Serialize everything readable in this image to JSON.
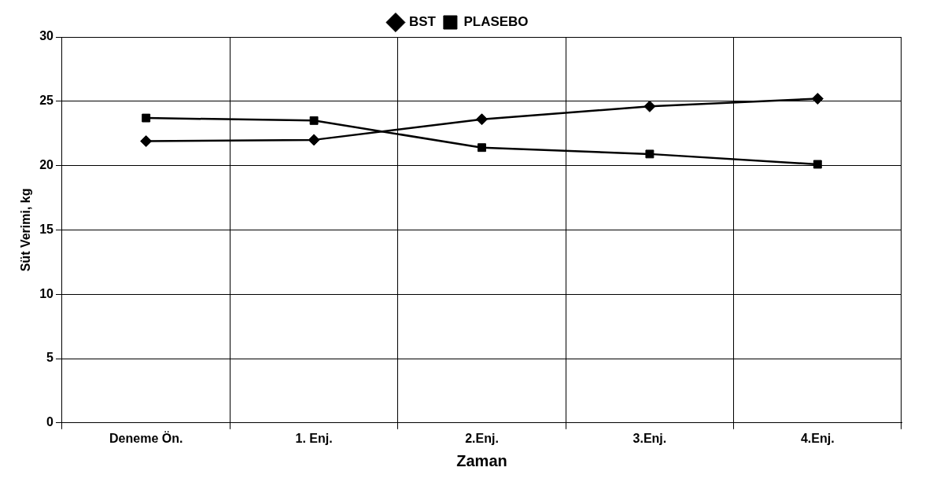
{
  "chart_data": {
    "type": "line",
    "xlabel": "Zaman",
    "ylabel": "Süt Verimi, kg",
    "categories": [
      "Deneme Ön.",
      "1. Enj.",
      "2.Enj.",
      "3.Enj.",
      "4.Enj."
    ],
    "series": [
      {
        "name": "BST",
        "color": "#000000",
        "values": [
          21.9,
          22.0,
          23.6,
          24.6,
          25.2
        ],
        "marker": "diamond"
      },
      {
        "name": "PLASEBO",
        "color": "#000000",
        "values": [
          23.7,
          23.5,
          21.4,
          20.9,
          20.1
        ],
        "marker": "square"
      }
    ],
    "ylim": [
      0,
      30
    ],
    "yticks": [
      0,
      5,
      10,
      15,
      20,
      25,
      30
    ],
    "grid": true,
    "legend": "top",
    "line_style": "solid"
  }
}
